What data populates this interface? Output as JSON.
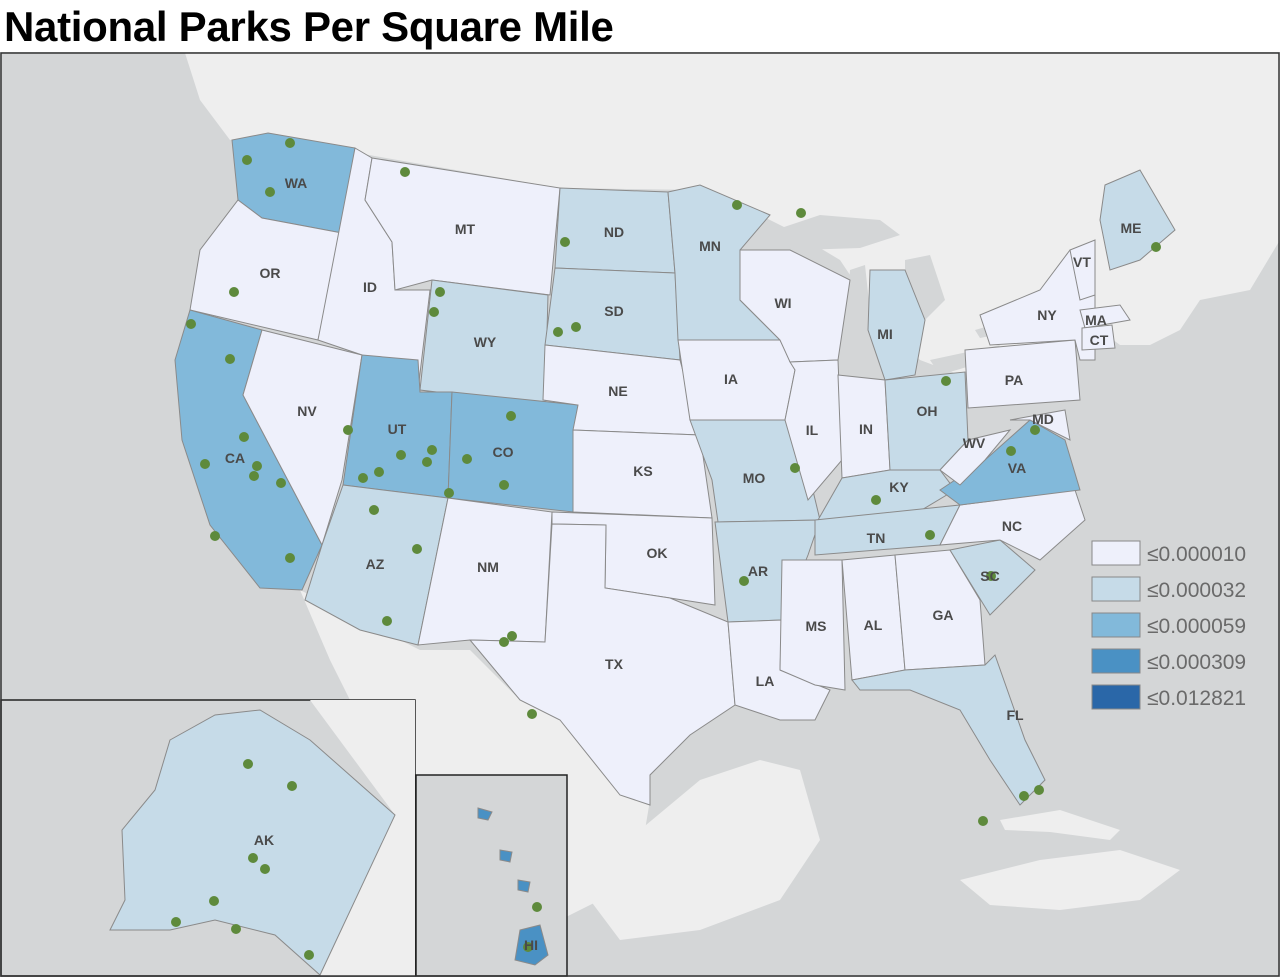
{
  "title": "National Parks Per Square Mile",
  "colors": {
    "ocean": "#d4d6d7",
    "land": "#eeeeee",
    "border": "#8a8a8a",
    "park_dot": "#5e8a3c"
  },
  "legend": [
    {
      "label": "≤0.000010",
      "color": "#eef0fb"
    },
    {
      "label": "≤0.000032",
      "color": "#c6dbe8"
    },
    {
      "label": "≤0.000059",
      "color": "#82b9da"
    },
    {
      "label": "≤0.000309",
      "color": "#4a91c4"
    },
    {
      "label": "≤0.012821",
      "color": "#2a67a8"
    }
  ],
  "states": [
    {
      "abbr": "WA",
      "class": 3
    },
    {
      "abbr": "OR",
      "class": 1
    },
    {
      "abbr": "CA",
      "class": 3
    },
    {
      "abbr": "ID",
      "class": 1
    },
    {
      "abbr": "NV",
      "class": 1
    },
    {
      "abbr": "MT",
      "class": 1
    },
    {
      "abbr": "WY",
      "class": 2
    },
    {
      "abbr": "UT",
      "class": 3
    },
    {
      "abbr": "CO",
      "class": 3
    },
    {
      "abbr": "AZ",
      "class": 2
    },
    {
      "abbr": "NM",
      "class": 1
    },
    {
      "abbr": "ND",
      "class": 2
    },
    {
      "abbr": "SD",
      "class": 2
    },
    {
      "abbr": "NE",
      "class": 1
    },
    {
      "abbr": "KS",
      "class": 1
    },
    {
      "abbr": "OK",
      "class": 1
    },
    {
      "abbr": "TX",
      "class": 1
    },
    {
      "abbr": "MN",
      "class": 2
    },
    {
      "abbr": "IA",
      "class": 1
    },
    {
      "abbr": "MO",
      "class": 2
    },
    {
      "abbr": "AR",
      "class": 2
    },
    {
      "abbr": "LA",
      "class": 1
    },
    {
      "abbr": "WI",
      "class": 1
    },
    {
      "abbr": "IL",
      "class": 1
    },
    {
      "abbr": "MI",
      "class": 2
    },
    {
      "abbr": "IN",
      "class": 1
    },
    {
      "abbr": "OH",
      "class": 2
    },
    {
      "abbr": "KY",
      "class": 2
    },
    {
      "abbr": "TN",
      "class": 2
    },
    {
      "abbr": "MS",
      "class": 1
    },
    {
      "abbr": "AL",
      "class": 1
    },
    {
      "abbr": "GA",
      "class": 1
    },
    {
      "abbr": "FL",
      "class": 2
    },
    {
      "abbr": "SC",
      "class": 2
    },
    {
      "abbr": "NC",
      "class": 1
    },
    {
      "abbr": "VA",
      "class": 3
    },
    {
      "abbr": "WV",
      "class": 1
    },
    {
      "abbr": "MD",
      "class": 1
    },
    {
      "abbr": "PA",
      "class": 1
    },
    {
      "abbr": "NY",
      "class": 1
    },
    {
      "abbr": "VT",
      "class": 1
    },
    {
      "abbr": "MA",
      "class": 1
    },
    {
      "abbr": "CT",
      "class": 1
    },
    {
      "abbr": "ME",
      "class": 2
    },
    {
      "abbr": "AK",
      "class": 2
    },
    {
      "abbr": "HI",
      "class": 4
    }
  ]
}
